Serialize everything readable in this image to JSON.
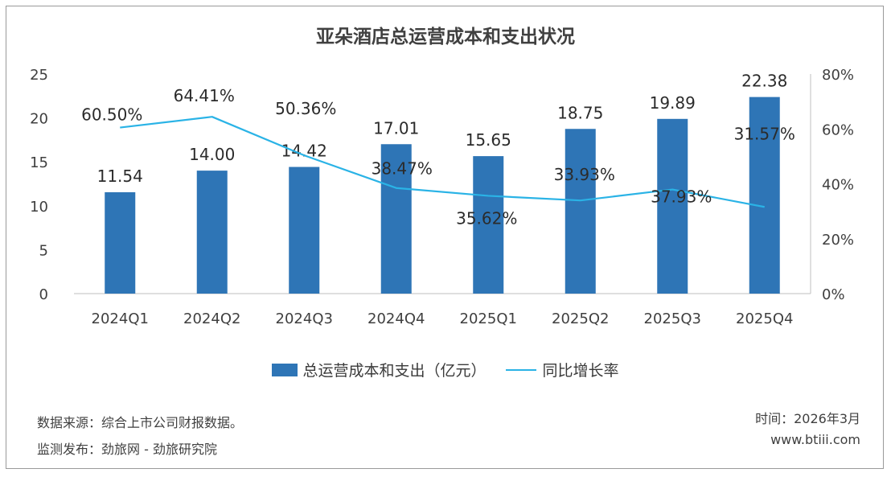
{
  "title": "亚朵酒店总运营成本和支出状况",
  "chart_data": {
    "type": "bar",
    "title": "亚朵酒店总运营成本和支出状况",
    "categories": [
      "2024Q1",
      "2024Q2",
      "2024Q3",
      "2024Q4",
      "2025Q1",
      "2025Q2",
      "2025Q3",
      "2025Q4"
    ],
    "series": [
      {
        "name": "总运营成本和支出（亿元）",
        "type": "bar",
        "axis": "left",
        "values": [
          11.54,
          14.0,
          14.42,
          17.01,
          15.65,
          18.75,
          19.89,
          22.38
        ],
        "labels": [
          "11.54",
          "14.00",
          "14.42",
          "17.01",
          "15.65",
          "18.75",
          "19.89",
          "22.38"
        ],
        "color": "#2e75b6"
      },
      {
        "name": "同比增长率",
        "type": "line",
        "axis": "right",
        "values": [
          60.5,
          64.41,
          50.36,
          38.47,
          35.62,
          33.93,
          37.93,
          31.57
        ],
        "labels": [
          "60.50%",
          "64.41%",
          "50.36%",
          "38.47%",
          "35.62%",
          "33.93%",
          "37.93%",
          "31.57%"
        ],
        "color": "#2ab3e6"
      }
    ],
    "y_left": {
      "min": 0,
      "max": 25,
      "ticks": [
        "0",
        "5",
        "10",
        "15",
        "20",
        "25"
      ]
    },
    "y_right": {
      "min": 0,
      "max": 80,
      "ticks": [
        "0%",
        "20%",
        "40%",
        "60%",
        "80%"
      ]
    },
    "legend_position": "bottom"
  },
  "footer": {
    "source": "数据来源：综合上市公司财报数据。",
    "monitor": "监测发布：劲旅网 - 劲旅研究院",
    "time": "时间：2026年3月",
    "website": "www.btiii.com"
  }
}
